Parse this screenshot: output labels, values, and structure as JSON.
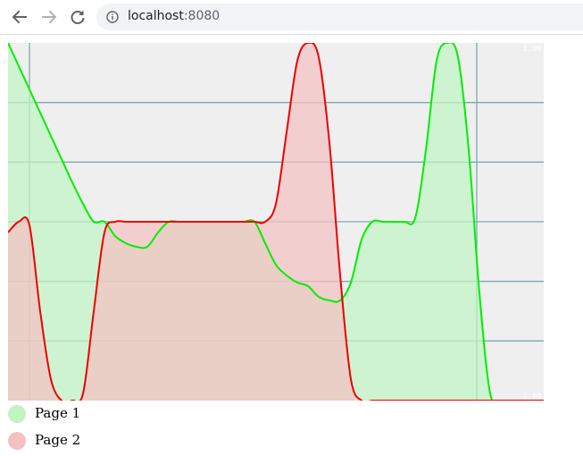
{
  "browser": {
    "back_icon": "arrow-left-icon",
    "forward_icon": "arrow-right-icon",
    "reload_icon": "reload-icon",
    "info_icon": "info-icon",
    "url_host": "localhost",
    "url_port": ":8080"
  },
  "colors": {
    "page1_line": "#00ee00",
    "page1_fill": "#c1f4c3",
    "page2_line": "#ee0000",
    "page2_fill": "#f4c1c1",
    "overlap_fill": "#cbc09c",
    "plot_bg": "#efefef",
    "grid": "#7faaaa"
  },
  "chart_data": {
    "type": "area",
    "x": [
      0.0,
      0.02,
      0.04,
      0.06,
      0.08,
      0.1,
      0.12,
      0.14,
      0.16,
      0.18,
      0.2,
      0.22,
      0.24,
      0.26,
      0.28,
      0.3,
      0.32,
      0.34,
      0.36,
      0.38,
      0.4,
      0.42,
      0.44,
      0.46,
      0.48,
      0.5,
      0.52,
      0.54,
      0.56,
      0.58,
      0.6,
      0.62,
      0.64,
      0.66,
      0.68,
      0.7,
      0.72,
      0.74,
      0.76,
      0.78,
      0.8,
      0.82,
      0.84,
      0.86,
      0.88,
      0.9,
      0.92,
      0.94,
      0.96,
      0.98,
      1.0
    ],
    "series": [
      {
        "name": "Page 1",
        "values": [
          1.0,
          0.935,
          0.87,
          0.805,
          0.74,
          0.675,
          0.61,
          0.55,
          0.5,
          0.5,
          0.46,
          0.44,
          0.43,
          0.43,
          0.47,
          0.5,
          0.5,
          0.5,
          0.5,
          0.5,
          0.5,
          0.5,
          0.5,
          0.5,
          0.44,
          0.38,
          0.35,
          0.33,
          0.32,
          0.29,
          0.28,
          0.28,
          0.33,
          0.45,
          0.5,
          0.5,
          0.5,
          0.5,
          0.51,
          0.7,
          0.95,
          1.0,
          0.96,
          0.7,
          0.3,
          0.02,
          0.0,
          0.0,
          0.0,
          0.0,
          0.0
        ]
      },
      {
        "name": "Page 2",
        "values": [
          0.47,
          0.5,
          0.49,
          0.25,
          0.06,
          0.0,
          0.0,
          0.02,
          0.25,
          0.47,
          0.5,
          0.5,
          0.5,
          0.5,
          0.5,
          0.5,
          0.5,
          0.5,
          0.5,
          0.5,
          0.5,
          0.5,
          0.5,
          0.5,
          0.5,
          0.55,
          0.75,
          0.95,
          1.0,
          0.96,
          0.72,
          0.35,
          0.06,
          0.0,
          0.0,
          0.0,
          0.0,
          0.0,
          0.0,
          0.0,
          0.0,
          0.0,
          0.0,
          0.0,
          0.0,
          0.0,
          0.0,
          0.0,
          0.0,
          0.0,
          0.0
        ]
      }
    ],
    "ylim": [
      0,
      1
    ],
    "xlim": [
      0,
      1
    ],
    "y_ticks_count": 6,
    "x_grid": [
      0.04,
      0.875
    ],
    "tick_labels": [
      "1.00",
      "1.00"
    ],
    "grid": true,
    "legend_position": "bottom-left"
  },
  "legend": {
    "items": [
      "Page 1",
      "Page 2"
    ]
  }
}
